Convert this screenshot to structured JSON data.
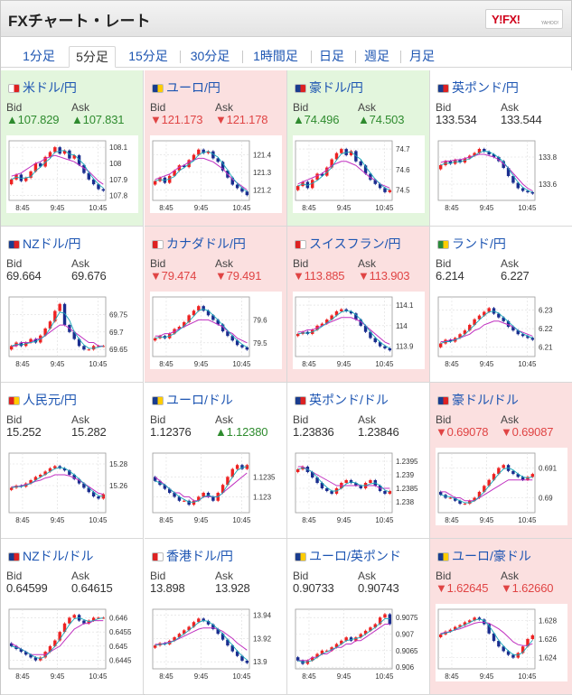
{
  "header": {
    "title": "FXチャート・レート",
    "logo_text": "Y!FX!",
    "logo_sub": "YAHOO!"
  },
  "tabs": [
    {
      "label": "1分足",
      "active": false
    },
    {
      "label": "5分足",
      "active": true
    },
    {
      "label": "15分足",
      "active": false
    },
    {
      "label": "30分足",
      "active": false
    },
    {
      "label": "1時間足",
      "active": false
    },
    {
      "label": "日足",
      "active": false
    },
    {
      "label": "週足",
      "active": false
    },
    {
      "label": "月足",
      "active": false
    }
  ],
  "labels": {
    "bid": "Bid",
    "ask": "Ask"
  },
  "chart_data": [
    {
      "type": "line",
      "pair": "米ドル/円",
      "direction": "up",
      "bid": "▲107.829",
      "ask": "▲107.831",
      "x_ticks": [
        "8:45",
        "9:45",
        "10:45"
      ],
      "y_ticks": [
        "108.1",
        "108",
        "107.9",
        "107.8"
      ],
      "y_range": [
        107.77,
        108.14
      ],
      "close": [
        107.9,
        107.93,
        107.89,
        107.91,
        107.95,
        108.0,
        107.98,
        108.04,
        108.07,
        108.1,
        108.06,
        108.08,
        108.03,
        108.05,
        107.99,
        107.94,
        107.9,
        107.87,
        107.84,
        107.83
      ],
      "ma": [
        107.92,
        107.93,
        107.94,
        107.96,
        107.98,
        108.0,
        108.01,
        108.03,
        108.04,
        108.05,
        108.04,
        108.03,
        108.02,
        108.01,
        107.99,
        107.97,
        107.95,
        107.92,
        107.89,
        107.87
      ]
    },
    {
      "type": "line",
      "pair": "ユーロ/円",
      "direction": "down",
      "bid": "▼121.173",
      "ask": "▼121.178",
      "x_ticks": [
        "8:45",
        "9:45",
        "10:45"
      ],
      "y_ticks": [
        "121.4",
        "121.3",
        "121.2"
      ],
      "y_range": [
        121.14,
        121.48
      ],
      "close": [
        121.25,
        121.27,
        121.24,
        121.28,
        121.31,
        121.34,
        121.33,
        121.37,
        121.4,
        121.43,
        121.41,
        121.42,
        121.38,
        121.36,
        121.31,
        121.27,
        121.23,
        121.21,
        121.19,
        121.17
      ],
      "ma": [
        121.26,
        121.27,
        121.28,
        121.29,
        121.31,
        121.33,
        121.34,
        121.36,
        121.37,
        121.38,
        121.38,
        121.37,
        121.36,
        121.34,
        121.32,
        121.29,
        121.26,
        121.24,
        121.22,
        121.2
      ]
    },
    {
      "type": "line",
      "pair": "豪ドル/円",
      "direction": "up",
      "bid": "▲74.496",
      "ask": "▲74.503",
      "x_ticks": [
        "8:45",
        "9:45",
        "10:45"
      ],
      "y_ticks": [
        "74.7",
        "74.6",
        "74.5"
      ],
      "y_range": [
        74.45,
        74.74
      ],
      "close": [
        74.52,
        74.54,
        74.51,
        74.55,
        74.58,
        74.57,
        74.61,
        74.65,
        74.68,
        74.7,
        74.67,
        74.69,
        74.64,
        74.62,
        74.58,
        74.55,
        74.53,
        74.51,
        74.49,
        74.5
      ],
      "ma": [
        74.53,
        74.54,
        74.55,
        74.56,
        74.57,
        74.58,
        74.6,
        74.62,
        74.63,
        74.64,
        74.64,
        74.63,
        74.62,
        74.6,
        74.58,
        74.56,
        74.55,
        74.53,
        74.52,
        74.51
      ]
    },
    {
      "type": "line",
      "pair": "英ポンド/円",
      "direction": "flat",
      "bid": "133.534",
      "ask": "133.544",
      "x_ticks": [
        "8:45",
        "9:45",
        "10:45"
      ],
      "y_ticks": [
        "133.8",
        "133.6"
      ],
      "y_range": [
        133.48,
        133.92
      ],
      "close": [
        133.74,
        133.77,
        133.75,
        133.78,
        133.76,
        133.79,
        133.81,
        133.83,
        133.86,
        133.84,
        133.82,
        133.8,
        133.77,
        133.72,
        133.66,
        133.61,
        133.57,
        133.55,
        133.54,
        133.53
      ],
      "ma": [
        133.76,
        133.77,
        133.77,
        133.78,
        133.78,
        133.79,
        133.8,
        133.81,
        133.82,
        133.82,
        133.81,
        133.8,
        133.78,
        133.75,
        133.72,
        133.68,
        133.64,
        133.6,
        133.57,
        133.55
      ]
    },
    {
      "type": "line",
      "pair": "NZドル/円",
      "direction": "flat",
      "bid": "69.664",
      "ask": "69.676",
      "x_ticks": [
        "8:45",
        "9:45",
        "10:45"
      ],
      "y_ticks": [
        "69.75",
        "69.7",
        "69.65"
      ],
      "y_range": [
        69.63,
        69.8
      ],
      "close": [
        69.66,
        69.67,
        69.66,
        69.67,
        69.68,
        69.67,
        69.69,
        69.71,
        69.73,
        69.76,
        69.78,
        69.72,
        69.7,
        69.68,
        69.66,
        69.65,
        69.65,
        69.66,
        69.66,
        69.66
      ],
      "ma": [
        69.66,
        69.66,
        69.67,
        69.67,
        69.67,
        69.68,
        69.68,
        69.69,
        69.7,
        69.71,
        69.72,
        69.72,
        69.71,
        69.7,
        69.69,
        69.68,
        69.67,
        69.67,
        69.66,
        69.66
      ]
    },
    {
      "type": "line",
      "pair": "カナダドル/円",
      "direction": "down",
      "bid": "▼79.474",
      "ask": "▼79.491",
      "x_ticks": [
        "8:45",
        "9:45",
        "10:45"
      ],
      "y_ticks": [
        "79.6",
        "79.5"
      ],
      "y_range": [
        79.44,
        79.7
      ],
      "close": [
        79.52,
        79.53,
        79.52,
        79.54,
        79.56,
        79.57,
        79.59,
        79.62,
        79.64,
        79.66,
        79.64,
        79.62,
        79.6,
        79.58,
        79.55,
        79.53,
        79.51,
        79.49,
        79.48,
        79.47
      ],
      "ma": [
        79.53,
        79.53,
        79.54,
        79.54,
        79.55,
        79.56,
        79.57,
        79.58,
        79.59,
        79.6,
        79.6,
        79.6,
        79.59,
        79.58,
        79.57,
        79.55,
        79.54,
        79.52,
        79.51,
        79.5
      ]
    },
    {
      "type": "line",
      "pair": "スイスフラン/円",
      "direction": "down",
      "bid": "▼113.885",
      "ask": "▼113.903",
      "x_ticks": [
        "8:45",
        "9:45",
        "10:45"
      ],
      "y_ticks": [
        "114.1",
        "114",
        "113.9"
      ],
      "y_range": [
        113.85,
        114.14
      ],
      "close": [
        113.96,
        113.97,
        113.96,
        113.98,
        114.0,
        114.01,
        114.03,
        114.05,
        114.07,
        114.08,
        114.07,
        114.06,
        114.03,
        114.0,
        113.97,
        113.94,
        113.92,
        113.9,
        113.89,
        113.88
      ],
      "ma": [
        113.97,
        113.97,
        113.98,
        113.98,
        113.99,
        114.0,
        114.01,
        114.02,
        114.03,
        114.04,
        114.04,
        114.04,
        114.03,
        114.02,
        114.0,
        113.98,
        113.96,
        113.94,
        113.92,
        113.91
      ]
    },
    {
      "type": "line",
      "pair": "ランド/円",
      "direction": "flat",
      "bid": "6.214",
      "ask": "6.227",
      "x_ticks": [
        "8:45",
        "9:45",
        "10:45"
      ],
      "y_ticks": [
        "6.23",
        "6.22",
        "6.21"
      ],
      "y_range": [
        6.205,
        6.237
      ],
      "close": [
        6.212,
        6.214,
        6.213,
        6.215,
        6.217,
        6.219,
        6.222,
        6.225,
        6.227,
        6.229,
        6.231,
        6.228,
        6.226,
        6.224,
        6.221,
        6.219,
        6.217,
        6.216,
        6.215,
        6.214
      ],
      "ma": [
        6.213,
        6.213,
        6.214,
        6.214,
        6.215,
        6.216,
        6.217,
        6.219,
        6.22,
        6.222,
        6.223,
        6.224,
        6.224,
        6.223,
        6.222,
        6.221,
        6.219,
        6.218,
        6.217,
        6.216
      ]
    },
    {
      "type": "line",
      "pair": "人民元/円",
      "direction": "flat",
      "bid": "15.252",
      "ask": "15.282",
      "x_ticks": [
        "8:45",
        "9:45",
        "10:45"
      ],
      "y_ticks": [
        "15.28",
        "15.26"
      ],
      "y_range": [
        15.235,
        15.29
      ],
      "close": [
        15.258,
        15.26,
        15.259,
        15.262,
        15.265,
        15.268,
        15.27,
        15.273,
        15.276,
        15.278,
        15.276,
        15.274,
        15.27,
        15.266,
        15.262,
        15.258,
        15.254,
        15.25,
        15.248,
        15.252
      ],
      "ma": [
        15.259,
        15.259,
        15.26,
        15.261,
        15.262,
        15.264,
        15.265,
        15.267,
        15.268,
        15.27,
        15.27,
        15.27,
        15.269,
        15.267,
        15.265,
        15.262,
        15.259,
        15.256,
        15.253,
        15.252
      ]
    },
    {
      "type": "line",
      "pair": "ユーロ/ドル",
      "direction": "flat",
      "bid": "1.12376",
      "ask": "▲1.12380",
      "x_ticks": [
        "8:45",
        "9:45",
        "10:45"
      ],
      "y_ticks": [
        "1.1235",
        "1.123"
      ],
      "y_range": [
        1.1226,
        1.1241
      ],
      "close": [
        1.1234,
        1.1233,
        1.1232,
        1.1231,
        1.123,
        1.1229,
        1.1229,
        1.1228,
        1.1229,
        1.123,
        1.1231,
        1.123,
        1.1229,
        1.1231,
        1.1233,
        1.1235,
        1.1237,
        1.1238,
        1.1237,
        1.1238
      ],
      "ma": [
        1.1235,
        1.1234,
        1.1233,
        1.1232,
        1.1231,
        1.1231,
        1.123,
        1.123,
        1.1229,
        1.1229,
        1.123,
        1.123,
        1.123,
        1.123,
        1.1231,
        1.1232,
        1.1233,
        1.1234,
        1.1235,
        1.1236
      ]
    },
    {
      "type": "line",
      "pair": "英ポンド/ドル",
      "direction": "flat",
      "bid": "1.23836",
      "ask": "1.23846",
      "x_ticks": [
        "8:45",
        "9:45",
        "10:45"
      ],
      "y_ticks": [
        "1.2395",
        "1.239",
        "1.2385",
        "1.238"
      ],
      "y_range": [
        1.2376,
        1.2398
      ],
      "close": [
        1.2392,
        1.2393,
        1.2391,
        1.2389,
        1.2387,
        1.2385,
        1.2384,
        1.2383,
        1.2385,
        1.2387,
        1.2388,
        1.2387,
        1.2386,
        1.2385,
        1.2387,
        1.2388,
        1.2386,
        1.2384,
        1.2383,
        1.2384
      ],
      "ma": [
        1.2393,
        1.2393,
        1.2392,
        1.2391,
        1.239,
        1.2389,
        1.2388,
        1.2387,
        1.2386,
        1.2386,
        1.2386,
        1.2386,
        1.2386,
        1.2386,
        1.2386,
        1.2386,
        1.2386,
        1.2385,
        1.2385,
        1.2385
      ]
    },
    {
      "type": "line",
      "pair": "豪ドル/ドル",
      "direction": "down",
      "bid": "▼0.69078",
      "ask": "▼0.69087",
      "x_ticks": [
        "8:45",
        "9:45",
        "10:45"
      ],
      "y_ticks": [
        "0.691",
        "0.69"
      ],
      "y_range": [
        0.6895,
        0.6915
      ],
      "close": [
        0.6901,
        0.69,
        0.69,
        0.6899,
        0.6898,
        0.6898,
        0.6899,
        0.69,
        0.6902,
        0.6904,
        0.6906,
        0.6908,
        0.691,
        0.6911,
        0.6909,
        0.6908,
        0.6907,
        0.6906,
        0.6907,
        0.6908
      ],
      "ma": [
        0.6902,
        0.6902,
        0.6901,
        0.69,
        0.69,
        0.6899,
        0.6899,
        0.6899,
        0.69,
        0.6901,
        0.6902,
        0.6903,
        0.6904,
        0.6905,
        0.6906,
        0.6906,
        0.6906,
        0.6906,
        0.6906,
        0.6906
      ]
    },
    {
      "type": "line",
      "pair": "NZドル/ドル",
      "direction": "flat",
      "bid": "0.64599",
      "ask": "0.64615",
      "x_ticks": [
        "8:45",
        "9:45",
        "10:45"
      ],
      "y_ticks": [
        "0.646",
        "0.6455",
        "0.645",
        "0.6445"
      ],
      "y_range": [
        0.6442,
        0.6463
      ],
      "close": [
        0.645,
        0.6449,
        0.6448,
        0.6447,
        0.6446,
        0.6445,
        0.6446,
        0.6448,
        0.645,
        0.6452,
        0.6455,
        0.6458,
        0.646,
        0.6461,
        0.6459,
        0.6458,
        0.6459,
        0.646,
        0.646,
        0.646
      ],
      "ma": [
        0.6451,
        0.645,
        0.6449,
        0.6448,
        0.6447,
        0.6447,
        0.6447,
        0.6447,
        0.6448,
        0.6449,
        0.645,
        0.6452,
        0.6454,
        0.6456,
        0.6457,
        0.6458,
        0.6458,
        0.6459,
        0.6459,
        0.6459
      ]
    },
    {
      "type": "line",
      "pair": "香港ドル/円",
      "direction": "flat",
      "bid": "13.898",
      "ask": "13.928",
      "x_ticks": [
        "8:45",
        "9:45",
        "10:45"
      ],
      "y_ticks": [
        "13.94",
        "13.92",
        "13.9"
      ],
      "y_range": [
        13.894,
        13.945
      ],
      "close": [
        13.914,
        13.916,
        13.915,
        13.918,
        13.921,
        13.924,
        13.927,
        13.93,
        13.934,
        13.937,
        13.935,
        13.932,
        13.928,
        13.924,
        13.919,
        13.914,
        13.909,
        13.905,
        13.901,
        13.899
      ],
      "ma": [
        13.915,
        13.915,
        13.916,
        13.917,
        13.918,
        13.92,
        13.922,
        13.924,
        13.926,
        13.928,
        13.929,
        13.929,
        13.929,
        13.928,
        13.926,
        13.923,
        13.92,
        13.916,
        13.913,
        13.91
      ]
    },
    {
      "type": "line",
      "pair": "ユーロ/英ポンド",
      "direction": "flat",
      "bid": "0.90733",
      "ask": "0.90743",
      "x_ticks": [
        "8:45",
        "9:45",
        "10:45"
      ],
      "y_ticks": [
        "0.9075",
        "0.907",
        "0.9065",
        "0.906"
      ],
      "y_range": [
        0.90595,
        0.90775
      ],
      "close": [
        0.9062,
        0.9061,
        0.9062,
        0.9063,
        0.9064,
        0.9065,
        0.9065,
        0.9066,
        0.9067,
        0.9068,
        0.9069,
        0.9068,
        0.9069,
        0.907,
        0.9071,
        0.9072,
        0.9073,
        0.9075,
        0.9076,
        0.9073
      ],
      "ma": [
        0.9062,
        0.9062,
        0.9062,
        0.9063,
        0.9063,
        0.9064,
        0.9064,
        0.9065,
        0.9066,
        0.9066,
        0.9067,
        0.9067,
        0.9068,
        0.9068,
        0.9069,
        0.907,
        0.9071,
        0.9072,
        0.9073,
        0.9073
      ]
    },
    {
      "type": "line",
      "pair": "ユーロ/豪ドル",
      "direction": "down",
      "bid": "▼1.62645",
      "ask": "▼1.62660",
      "x_ticks": [
        "8:45",
        "9:45",
        "10:45"
      ],
      "y_ticks": [
        "1.628",
        "1.626",
        "1.624"
      ],
      "y_range": [
        1.6228,
        1.6292
      ],
      "close": [
        1.6265,
        1.6268,
        1.627,
        1.6273,
        1.6275,
        1.6278,
        1.628,
        1.6283,
        1.6281,
        1.6276,
        1.6266,
        1.6258,
        1.6252,
        1.6247,
        1.6243,
        1.624,
        1.6245,
        1.6252,
        1.626,
        1.6264
      ],
      "ma": [
        1.6266,
        1.6267,
        1.6268,
        1.627,
        1.6271,
        1.6273,
        1.6275,
        1.6277,
        1.6278,
        1.6278,
        1.6277,
        1.6274,
        1.6271,
        1.6267,
        1.6262,
        1.6257,
        1.6254,
        1.6253,
        1.6253,
        1.6255
      ]
    }
  ]
}
